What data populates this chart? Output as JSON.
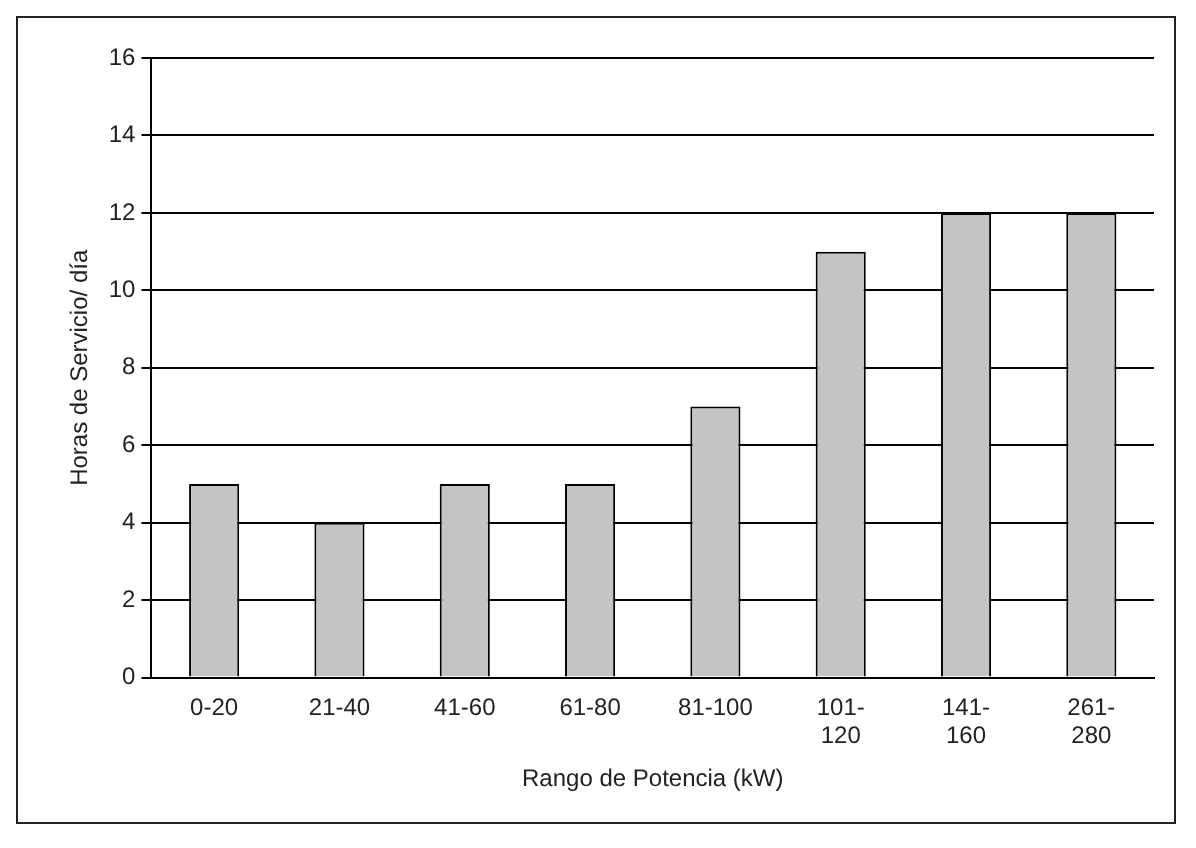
{
  "chart_data": {
    "type": "bar",
    "xlabel": "Rango de Potencia (kW)",
    "ylabel": "Horas de Servicio/ día",
    "categories": [
      "0-20",
      "21-40",
      "41-60",
      "61-80",
      "81-100",
      "101-120",
      "141-160",
      "261-280"
    ],
    "values": [
      5,
      4,
      5,
      5,
      7,
      11,
      12,
      12
    ],
    "color": "#c4c4c4",
    "ylim": [
      0,
      16
    ],
    "yticks": [
      0,
      2,
      4,
      6,
      8,
      10,
      12,
      14,
      16
    ],
    "grid": "y",
    "legend": false
  }
}
